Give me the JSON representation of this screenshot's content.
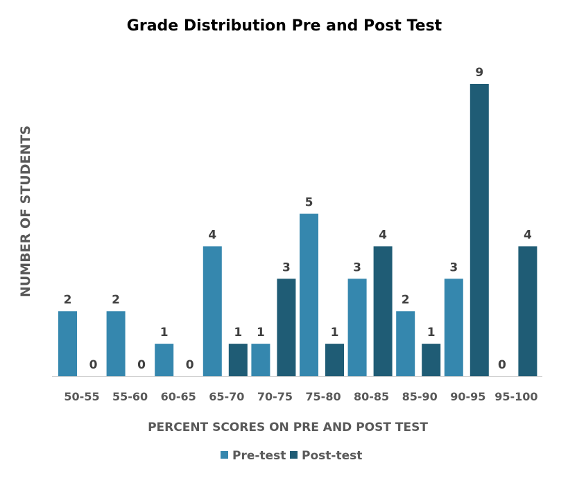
{
  "chart_data": {
    "type": "bar",
    "title": "Grade Distribution Pre and Post Test",
    "xlabel": "PERCENT SCORES ON PRE AND POST TEST",
    "ylabel": "NUMBER OF STUDENTS",
    "categories": [
      "50-55",
      "55-60",
      "60-65",
      "65-70",
      "70-75",
      "75-80",
      "80-85",
      "85-90",
      "90-95",
      "95-100"
    ],
    "series": [
      {
        "name": "Pre-test",
        "color": "#3587AE",
        "values": [
          2,
          2,
          1,
          4,
          1,
          5,
          3,
          2,
          3,
          0
        ]
      },
      {
        "name": "Post-test",
        "color": "#1F5C75",
        "values": [
          0,
          0,
          0,
          1,
          3,
          1,
          4,
          1,
          9,
          4
        ]
      }
    ],
    "ylim": [
      0,
      9
    ],
    "grid": false,
    "legend": "bottom",
    "data_labels": true
  }
}
